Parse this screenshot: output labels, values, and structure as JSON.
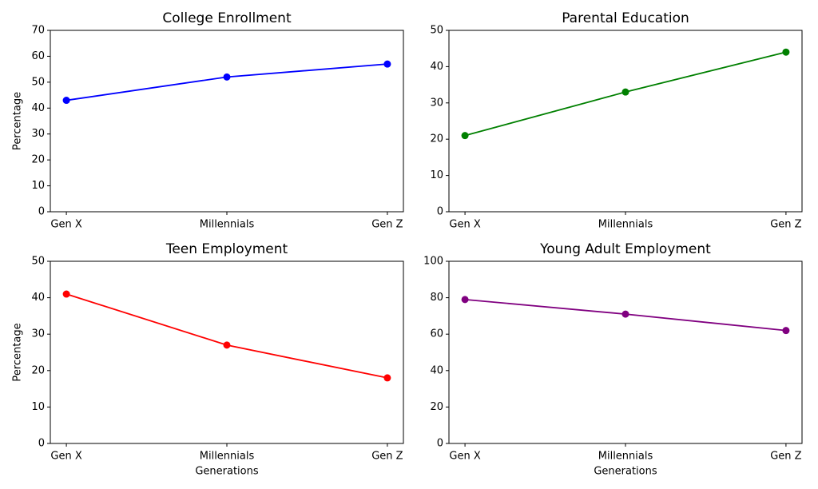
{
  "chart_data": [
    {
      "type": "line",
      "title": "College Enrollment",
      "ylabel": "Percentage",
      "categories": [
        "Gen X",
        "Millennials",
        "Gen Z"
      ],
      "values": [
        43,
        52,
        57
      ],
      "color": "blue",
      "ylim": [
        0,
        70
      ],
      "yticks": [
        0,
        10,
        20,
        30,
        40,
        50,
        60,
        70
      ]
    },
    {
      "type": "line",
      "title": "Parental Education",
      "categories": [
        "Gen X",
        "Millennials",
        "Gen Z"
      ],
      "values": [
        21,
        33,
        44
      ],
      "color": "green",
      "ylim": [
        0,
        50
      ],
      "yticks": [
        0,
        10,
        20,
        30,
        40,
        50
      ]
    },
    {
      "type": "line",
      "title": "Teen Employment",
      "xlabel": "Generations",
      "ylabel": "Percentage",
      "categories": [
        "Gen X",
        "Millennials",
        "Gen Z"
      ],
      "values": [
        41,
        27,
        18
      ],
      "color": "red",
      "ylim": [
        0,
        50
      ],
      "yticks": [
        0,
        10,
        20,
        30,
        40,
        50
      ]
    },
    {
      "type": "line",
      "title": "Young Adult Employment",
      "xlabel": "Generations",
      "categories": [
        "Gen X",
        "Millennials",
        "Gen Z"
      ],
      "values": [
        79,
        71,
        62
      ],
      "color": "purple",
      "ylim": [
        0,
        100
      ],
      "yticks": [
        0,
        20,
        40,
        60,
        80,
        100
      ]
    }
  ]
}
